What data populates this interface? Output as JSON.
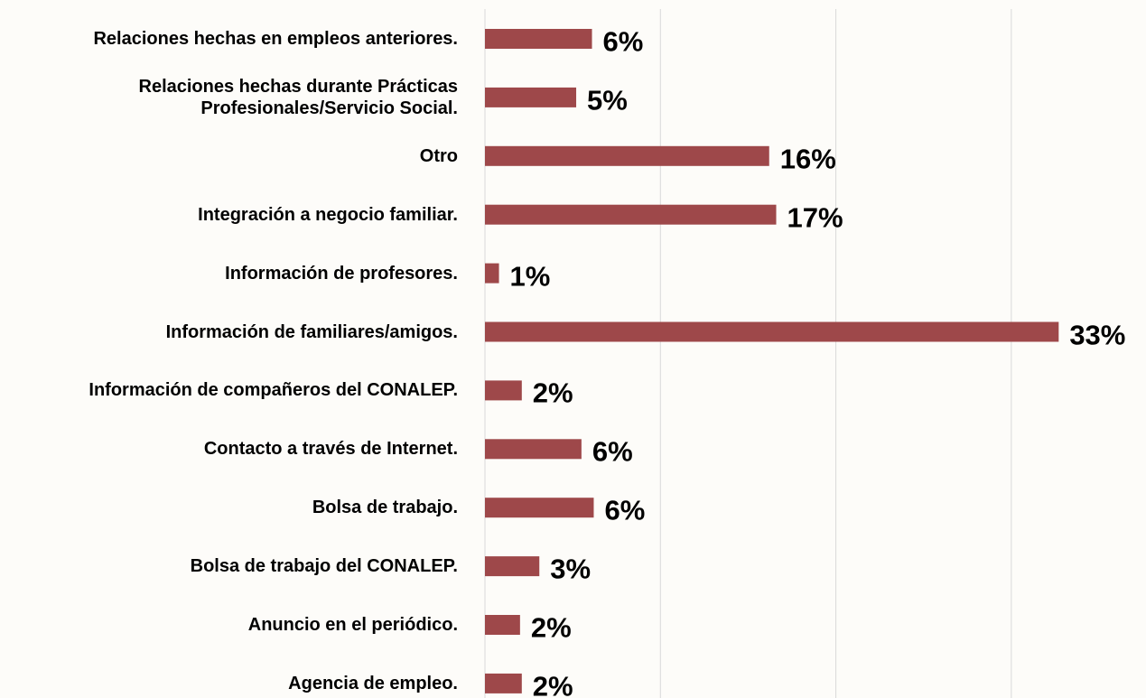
{
  "chart_data": {
    "type": "barh",
    "categories": [
      "Relaciones hechas en empleos anteriores.",
      "Relaciones hechas durante Prácticas Profesionales/Servicio Social.",
      "Otro",
      "Integración a negocio familiar.",
      "Información de profesores.",
      "Información de familiares/amigos.",
      "Información de compañeros del CONALEP.",
      "Contacto a través de Internet.",
      "Bolsa de trabajo.",
      "Bolsa de trabajo del CONALEP.",
      "Anuncio en el periódico.",
      "Agencia de empleo."
    ],
    "values": [
      6.1,
      5.2,
      16.2,
      16.6,
      0.8,
      32.7,
      2.1,
      5.5,
      6.2,
      3.1,
      2.0,
      2.1
    ],
    "value_labels": [
      "6%",
      "5%",
      "16%",
      "17%",
      "1%",
      "33%",
      "2%",
      "6%",
      "6%",
      "3%",
      "2%",
      "2%"
    ],
    "color": "#9e484a",
    "xlim": [
      0,
      35
    ],
    "xticks": [
      0,
      10,
      20,
      30
    ],
    "grid": true
  }
}
